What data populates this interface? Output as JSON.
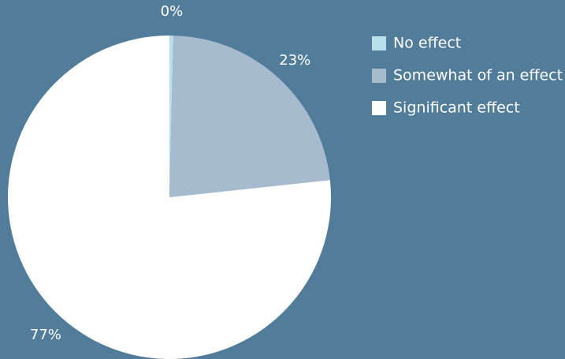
{
  "chart_data": {
    "type": "pie",
    "categories": [
      "No effect",
      "Somewhat of an effect",
      "Significant effect"
    ],
    "values": [
      0.4,
      23,
      77
    ],
    "value_labels": [
      "0%",
      "23%",
      "77%"
    ],
    "colors": [
      "#b9deec",
      "#a7bbcf",
      "#ffffff"
    ],
    "legend": "right"
  }
}
